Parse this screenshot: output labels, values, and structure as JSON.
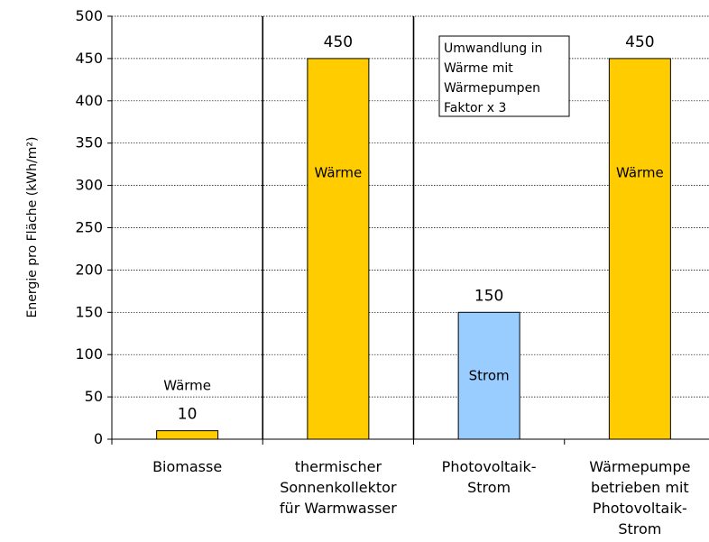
{
  "chart_data": {
    "type": "bar",
    "categories": [
      [
        "Biomasse"
      ],
      [
        "thermischer",
        "Sonnenkollektor",
        "für Warmwasser"
      ],
      [
        "Photovoltaik-",
        "Strom"
      ],
      [
        "Wärmepumpe",
        "betrieben mit",
        "Photovoltaik-",
        "Strom"
      ]
    ],
    "values": [
      10,
      450,
      150,
      450
    ],
    "value_labels": [
      "10",
      "450",
      "150",
      "450"
    ],
    "bar_text": [
      "Wärme",
      "Wärme",
      "Strom",
      "Wärme"
    ],
    "bar_colors": [
      "#FFCC00",
      "#FFCC00",
      "#99CCFF",
      "#FFCC00"
    ],
    "ylabel": "Energie pro Fläche (kWh/m²)",
    "yticks": [
      "0",
      "50",
      "100",
      "150",
      "200",
      "250",
      "300",
      "350",
      "400",
      "450",
      "500"
    ],
    "ylim": [
      0,
      500
    ],
    "grid": true,
    "separators_after_categories": [
      1,
      2
    ],
    "annotation": [
      "Umwandlung in",
      "Wärme mit",
      "Wärmepumpen",
      "Faktor x 3"
    ]
  }
}
